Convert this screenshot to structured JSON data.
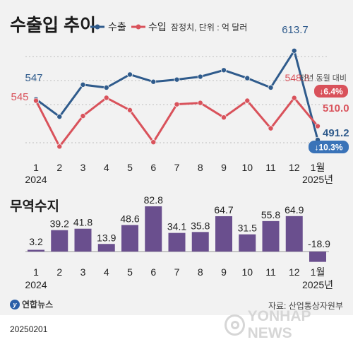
{
  "title": "수출입 추이",
  "legend": {
    "export_label": "수출",
    "import_label": "수입",
    "note": "잠정치, 단위 : 억 달러"
  },
  "yoy_label": "전년 동월 대비",
  "export_change": "↓6.4%",
  "import_change": "↓10.3%",
  "section2_title": "무역수지",
  "x_labels": [
    "1",
    "2",
    "3",
    "4",
    "5",
    "6",
    "7",
    "8",
    "9",
    "10",
    "11",
    "12",
    "1월"
  ],
  "year_start": "2024",
  "year_end": "2025년",
  "source": "자료: 산업통상자원부",
  "date_stamp": "20250201",
  "logo_text": "연합뉴스",
  "watermark_text": "YONHAP NEWS",
  "colors": {
    "export": "#2f5b8c",
    "import": "#d9525b",
    "bar": "#6a4f8e",
    "badge_export": "#d9525b",
    "badge_import": "#3a73b8"
  },
  "chart_data": [
    {
      "type": "line",
      "title": "수출입 추이",
      "x": [
        "1",
        "2",
        "3",
        "4",
        "5",
        "6",
        "7",
        "8",
        "9",
        "10",
        "11",
        "12",
        "1월"
      ],
      "series": [
        {
          "name": "수출",
          "values": [
            547,
            523,
            567,
            563,
            581,
            571,
            574,
            578,
            587,
            576,
            563,
            613.7,
            491.2
          ],
          "labels": {
            "0": "547",
            "11": "613.7",
            "12": "491.2"
          }
        },
        {
          "name": "수입",
          "values": [
            545,
            482,
            524,
            549,
            532,
            488,
            540,
            542,
            522,
            545,
            507,
            548.8,
            510.0
          ],
          "labels": {
            "0": "545",
            "11": "548.8",
            "12": "510.0"
          }
        }
      ],
      "ylim": [
        460,
        630
      ],
      "grid": true
    },
    {
      "type": "bar",
      "title": "무역수지",
      "categories": [
        "1",
        "2",
        "3",
        "4",
        "5",
        "6",
        "7",
        "8",
        "9",
        "10",
        "11",
        "12",
        "1월"
      ],
      "values": [
        3.2,
        39.2,
        41.8,
        13.9,
        48.6,
        82.8,
        34.1,
        35.8,
        64.7,
        31.5,
        55.8,
        64.9,
        -18.9
      ],
      "value_labels": [
        "3.2",
        "39.2",
        "41.8",
        "13.9",
        "48.6",
        "82.8",
        "34.1",
        "35.8",
        "64.7",
        "31.5",
        "55.8",
        "64.9",
        "-18.9"
      ]
    }
  ]
}
